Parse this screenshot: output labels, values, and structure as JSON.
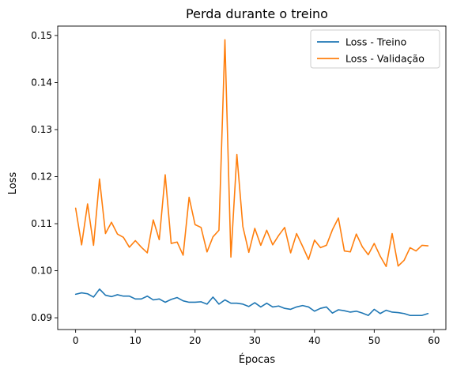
{
  "chart_data": {
    "type": "line",
    "title": "Perda durante o treino",
    "xlabel": "Épocas",
    "ylabel": "Loss",
    "xlim": [
      -3,
      62
    ],
    "ylim": [
      0.0875,
      0.152
    ],
    "x_ticks": [
      0,
      10,
      20,
      30,
      40,
      50,
      60
    ],
    "y_ticks": [
      0.09,
      0.1,
      0.11,
      0.12,
      0.13,
      0.14,
      0.15
    ],
    "y_tick_labels": [
      "0.09",
      "0.10",
      "0.11",
      "0.12",
      "0.13",
      "0.14",
      "0.15"
    ],
    "legend_position": "top-right",
    "grid": false,
    "x": [
      0,
      1,
      2,
      3,
      4,
      5,
      6,
      7,
      8,
      9,
      10,
      11,
      12,
      13,
      14,
      15,
      16,
      17,
      18,
      19,
      20,
      21,
      22,
      23,
      24,
      25,
      26,
      27,
      28,
      29,
      30,
      31,
      32,
      33,
      34,
      35,
      36,
      37,
      38,
      39,
      40,
      41,
      42,
      43,
      44,
      45,
      46,
      47,
      48,
      49,
      50,
      51,
      52,
      53,
      54,
      55,
      56,
      57,
      58,
      59
    ],
    "series": [
      {
        "name": "Loss - Treino",
        "color": "#1f77b4",
        "values": [
          0.095,
          0.0953,
          0.0951,
          0.0944,
          0.0961,
          0.0948,
          0.0945,
          0.0949,
          0.0946,
          0.0946,
          0.094,
          0.094,
          0.0946,
          0.0938,
          0.094,
          0.0933,
          0.0939,
          0.0943,
          0.0936,
          0.0933,
          0.0933,
          0.0934,
          0.0929,
          0.0944,
          0.0929,
          0.0938,
          0.0931,
          0.0931,
          0.0929,
          0.0924,
          0.0932,
          0.0923,
          0.0931,
          0.0923,
          0.0925,
          0.092,
          0.0918,
          0.0923,
          0.0926,
          0.0923,
          0.0914,
          0.092,
          0.0923,
          0.091,
          0.0917,
          0.0915,
          0.0912,
          0.0914,
          0.091,
          0.0905,
          0.0918,
          0.0909,
          0.0916,
          0.0912,
          0.0911,
          0.0909,
          0.0905,
          0.0905,
          0.0905,
          0.0909
        ]
      },
      {
        "name": "Loss - Validação",
        "color": "#ff7f0e",
        "values": [
          0.1133,
          0.1055,
          0.1142,
          0.1054,
          0.1195,
          0.1079,
          0.1103,
          0.1078,
          0.1071,
          0.105,
          0.1064,
          0.105,
          0.1038,
          0.1108,
          0.1066,
          0.1204,
          0.1058,
          0.1061,
          0.1033,
          0.1156,
          0.1098,
          0.1092,
          0.104,
          0.1072,
          0.1086,
          0.1491,
          0.1029,
          0.1247,
          0.1094,
          0.1039,
          0.109,
          0.1054,
          0.1086,
          0.1055,
          0.1075,
          0.1092,
          0.1038,
          0.1079,
          0.1052,
          0.1024,
          0.1065,
          0.1049,
          0.1054,
          0.1087,
          0.1112,
          0.1042,
          0.104,
          0.1078,
          0.1051,
          0.1034,
          0.1058,
          0.1031,
          0.1009,
          0.1079,
          0.101,
          0.1022,
          0.1049,
          0.1042,
          0.1054,
          0.1053
        ]
      }
    ]
  }
}
